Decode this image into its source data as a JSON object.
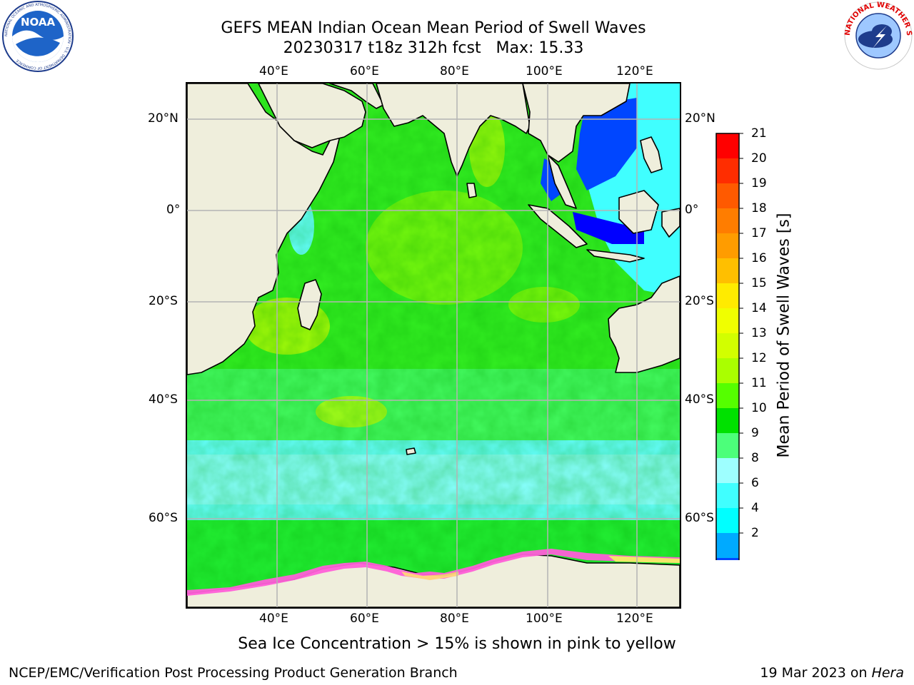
{
  "header": {
    "title_line1": "GEFS MEAN Indian Ocean Mean Period of Swell Waves",
    "title_line2": "20230317 t18z 312h fcst   Max: 15.33"
  },
  "logos": {
    "noara_text": "NOAA",
    "noaa_ring_text": "NATIONAL OCEANIC AND ATMOSPHERIC ADMINISTRATION · U.S. DEPARTMENT OF COMMERCE",
    "nws_ring_text": "NATIONAL WEATHER SERVICE"
  },
  "map": {
    "lon_ticks_top": [
      "40°E",
      "60°E",
      "80°E",
      "100°E",
      "120°E"
    ],
    "lon_ticks_bottom": [
      "40°E",
      "60°E",
      "80°E",
      "100°E",
      "120°E"
    ],
    "lat_ticks_left": [
      "20°N",
      "0°",
      "20°S",
      "40°S",
      "60°S"
    ],
    "lat_ticks_right": [
      "20°N",
      "0°",
      "20°S",
      "40°S",
      "60°S"
    ],
    "colors": {
      "land": "#efeedc",
      "grid": "#b4b4b4",
      "coast": "#000000",
      "ice": [
        "#ff3ce6",
        "#ff8ad0",
        "#ffc080",
        "#ffe86e"
      ]
    }
  },
  "colorbar": {
    "label": "Mean Period of Swell Waves [s]",
    "tick_labels": [
      "21",
      "20",
      "19",
      "18",
      "17",
      "16",
      "15",
      "14",
      "13",
      "12",
      "11",
      "10",
      "9",
      "8",
      "6",
      "4",
      "2"
    ],
    "colors": [
      "#ff0000",
      "#ff2d00",
      "#ff5a00",
      "#ff7d00",
      "#ff9c00",
      "#ffbf00",
      "#ffeb00",
      "#f0ff00",
      "#d2ff00",
      "#aaff00",
      "#55ff00",
      "#00e100",
      "#4cff7a",
      "#9effff",
      "#40ffff",
      "#00ffff",
      "#00aaff",
      "#0046ff"
    ],
    "extend_color": "#0000ff"
  },
  "footer": {
    "note": "Sea Ice Concentration > 15% is shown in pink to yellow",
    "left": "NCEP/EMC/Verification Post Processing Product Generation Branch",
    "right_date": "19 Mar 2023 on ",
    "right_machine": "Hera"
  }
}
